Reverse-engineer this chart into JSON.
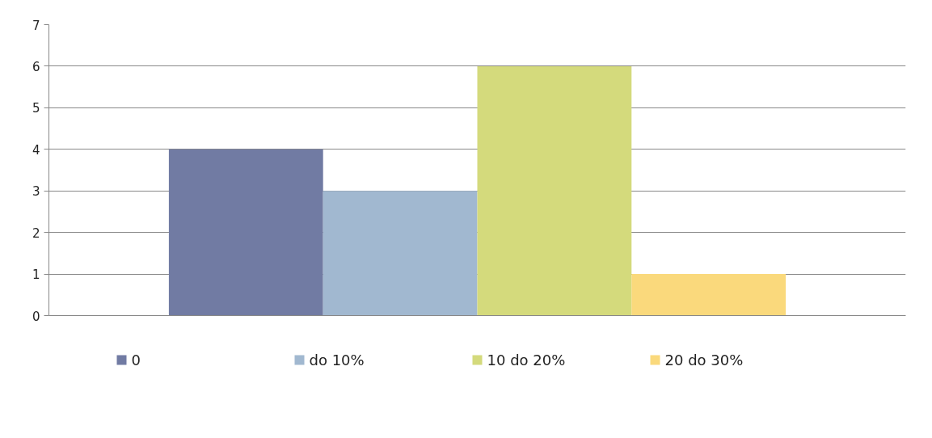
{
  "chart_data": {
    "type": "bar",
    "categories": [
      null
    ],
    "series": [
      {
        "name": "0",
        "color": "#717ba3",
        "values": [
          4
        ]
      },
      {
        "name": "do 10%",
        "color": "#a1b8d0",
        "values": [
          3
        ]
      },
      {
        "name": "10 do 20%",
        "color": "#d4da7c",
        "values": [
          6
        ]
      },
      {
        "name": "20 do 30%",
        "color": "#fad97c",
        "values": [
          1
        ]
      }
    ],
    "ylim": [
      0,
      7
    ],
    "yticks": [
      0,
      1,
      2,
      3,
      4,
      5,
      6,
      7
    ],
    "grid": "y",
    "legend": "bottom"
  }
}
